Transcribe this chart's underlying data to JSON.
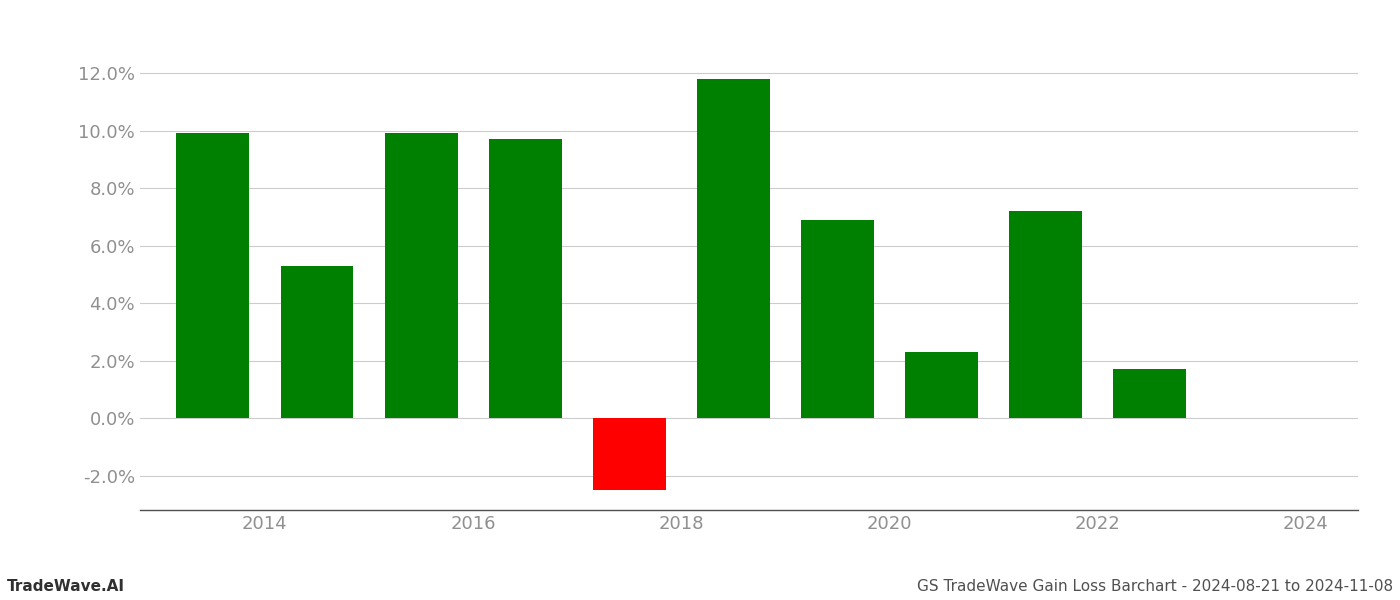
{
  "years": [
    2013.5,
    2014.5,
    2015.5,
    2016.5,
    2017.5,
    2018.5,
    2019.5,
    2020.5,
    2021.5,
    2022.5
  ],
  "values": [
    0.099,
    0.053,
    0.099,
    0.097,
    -0.025,
    0.118,
    0.069,
    0.023,
    0.072,
    0.017
  ],
  "colors": [
    "#008000",
    "#008000",
    "#008000",
    "#008000",
    "#ff0000",
    "#008000",
    "#008000",
    "#008000",
    "#008000",
    "#008000"
  ],
  "title": "GS TradeWave Gain Loss Barchart - 2024-08-21 to 2024-11-08",
  "watermark": "TradeWave.AI",
  "ylim_min": -0.032,
  "ylim_max": 0.135,
  "yticks": [
    -0.02,
    0.0,
    0.02,
    0.04,
    0.06,
    0.08,
    0.1,
    0.12
  ],
  "xticks": [
    2014,
    2016,
    2018,
    2020,
    2022,
    2024
  ],
  "xlim_min": 2012.8,
  "xlim_max": 2024.5,
  "bar_width": 0.7,
  "background_color": "#ffffff",
  "grid_color": "#cccccc",
  "tick_label_color": "#909090",
  "title_color": "#505050",
  "watermark_color": "#303030"
}
